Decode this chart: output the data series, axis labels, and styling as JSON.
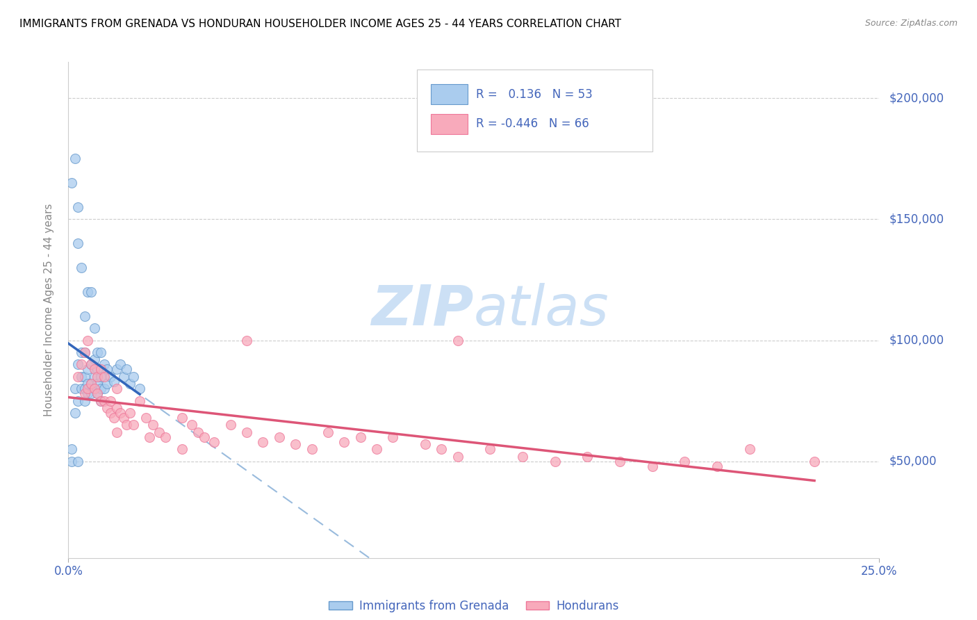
{
  "title": "IMMIGRANTS FROM GRENADA VS HONDURAN HOUSEHOLDER INCOME AGES 25 - 44 YEARS CORRELATION CHART",
  "source": "Source: ZipAtlas.com",
  "ylabel": "Householder Income Ages 25 - 44 years",
  "ytick_labels": [
    "$50,000",
    "$100,000",
    "$150,000",
    "$200,000"
  ],
  "ytick_values": [
    50000,
    100000,
    150000,
    200000
  ],
  "ymin": 10000,
  "ymax": 215000,
  "xmin": 0.0,
  "xmax": 0.25,
  "blue_R": 0.136,
  "blue_N": 53,
  "pink_R": -0.446,
  "pink_N": 66,
  "blue_color": "#aaccee",
  "pink_color": "#f8aabb",
  "blue_edge_color": "#6699cc",
  "pink_edge_color": "#ee7799",
  "blue_line_color": "#3366bb",
  "pink_line_color": "#dd5577",
  "dashed_line_color": "#99bbdd",
  "legend_label_blue": "Immigrants from Grenada",
  "legend_label_pink": "Hondurans",
  "watermark_zip": "ZIP",
  "watermark_atlas": "atlas",
  "watermark_color": "#cce0f5",
  "title_fontsize": 11,
  "axis_label_color": "#4466bb",
  "blue_scatter_x": [
    0.001,
    0.001,
    0.002,
    0.002,
    0.002,
    0.003,
    0.003,
    0.003,
    0.003,
    0.004,
    0.004,
    0.004,
    0.004,
    0.005,
    0.005,
    0.005,
    0.005,
    0.005,
    0.006,
    0.006,
    0.006,
    0.006,
    0.007,
    0.007,
    0.007,
    0.007,
    0.008,
    0.008,
    0.008,
    0.008,
    0.009,
    0.009,
    0.009,
    0.009,
    0.01,
    0.01,
    0.01,
    0.011,
    0.011,
    0.012,
    0.012,
    0.013,
    0.014,
    0.015,
    0.016,
    0.017,
    0.018,
    0.019,
    0.02,
    0.022,
    0.001,
    0.003,
    0.01
  ],
  "blue_scatter_y": [
    55000,
    165000,
    70000,
    80000,
    175000,
    75000,
    90000,
    140000,
    155000,
    80000,
    95000,
    85000,
    130000,
    75000,
    80000,
    85000,
    95000,
    110000,
    78000,
    82000,
    88000,
    120000,
    78000,
    82000,
    90000,
    120000,
    80000,
    85000,
    92000,
    105000,
    78000,
    82000,
    88000,
    95000,
    80000,
    85000,
    95000,
    80000,
    90000,
    82000,
    88000,
    85000,
    83000,
    88000,
    90000,
    85000,
    88000,
    82000,
    85000,
    80000,
    50000,
    50000,
    75000
  ],
  "pink_scatter_x": [
    0.003,
    0.004,
    0.005,
    0.005,
    0.006,
    0.006,
    0.007,
    0.007,
    0.008,
    0.008,
    0.009,
    0.009,
    0.01,
    0.01,
    0.011,
    0.011,
    0.012,
    0.013,
    0.013,
    0.014,
    0.015,
    0.015,
    0.016,
    0.017,
    0.018,
    0.019,
    0.02,
    0.022,
    0.024,
    0.026,
    0.028,
    0.03,
    0.035,
    0.038,
    0.04,
    0.042,
    0.045,
    0.05,
    0.055,
    0.06,
    0.065,
    0.07,
    0.075,
    0.08,
    0.085,
    0.09,
    0.095,
    0.1,
    0.11,
    0.115,
    0.12,
    0.13,
    0.14,
    0.15,
    0.16,
    0.17,
    0.18,
    0.19,
    0.2,
    0.21,
    0.015,
    0.025,
    0.035,
    0.055,
    0.12,
    0.23
  ],
  "pink_scatter_y": [
    85000,
    90000,
    78000,
    95000,
    80000,
    100000,
    82000,
    90000,
    80000,
    88000,
    78000,
    85000,
    75000,
    88000,
    75000,
    85000,
    72000,
    70000,
    75000,
    68000,
    72000,
    80000,
    70000,
    68000,
    65000,
    70000,
    65000,
    75000,
    68000,
    65000,
    62000,
    60000,
    68000,
    65000,
    62000,
    60000,
    58000,
    65000,
    62000,
    58000,
    60000,
    57000,
    55000,
    62000,
    58000,
    60000,
    55000,
    60000,
    57000,
    55000,
    52000,
    55000,
    52000,
    50000,
    52000,
    50000,
    48000,
    50000,
    48000,
    55000,
    62000,
    60000,
    55000,
    100000,
    100000,
    50000
  ]
}
